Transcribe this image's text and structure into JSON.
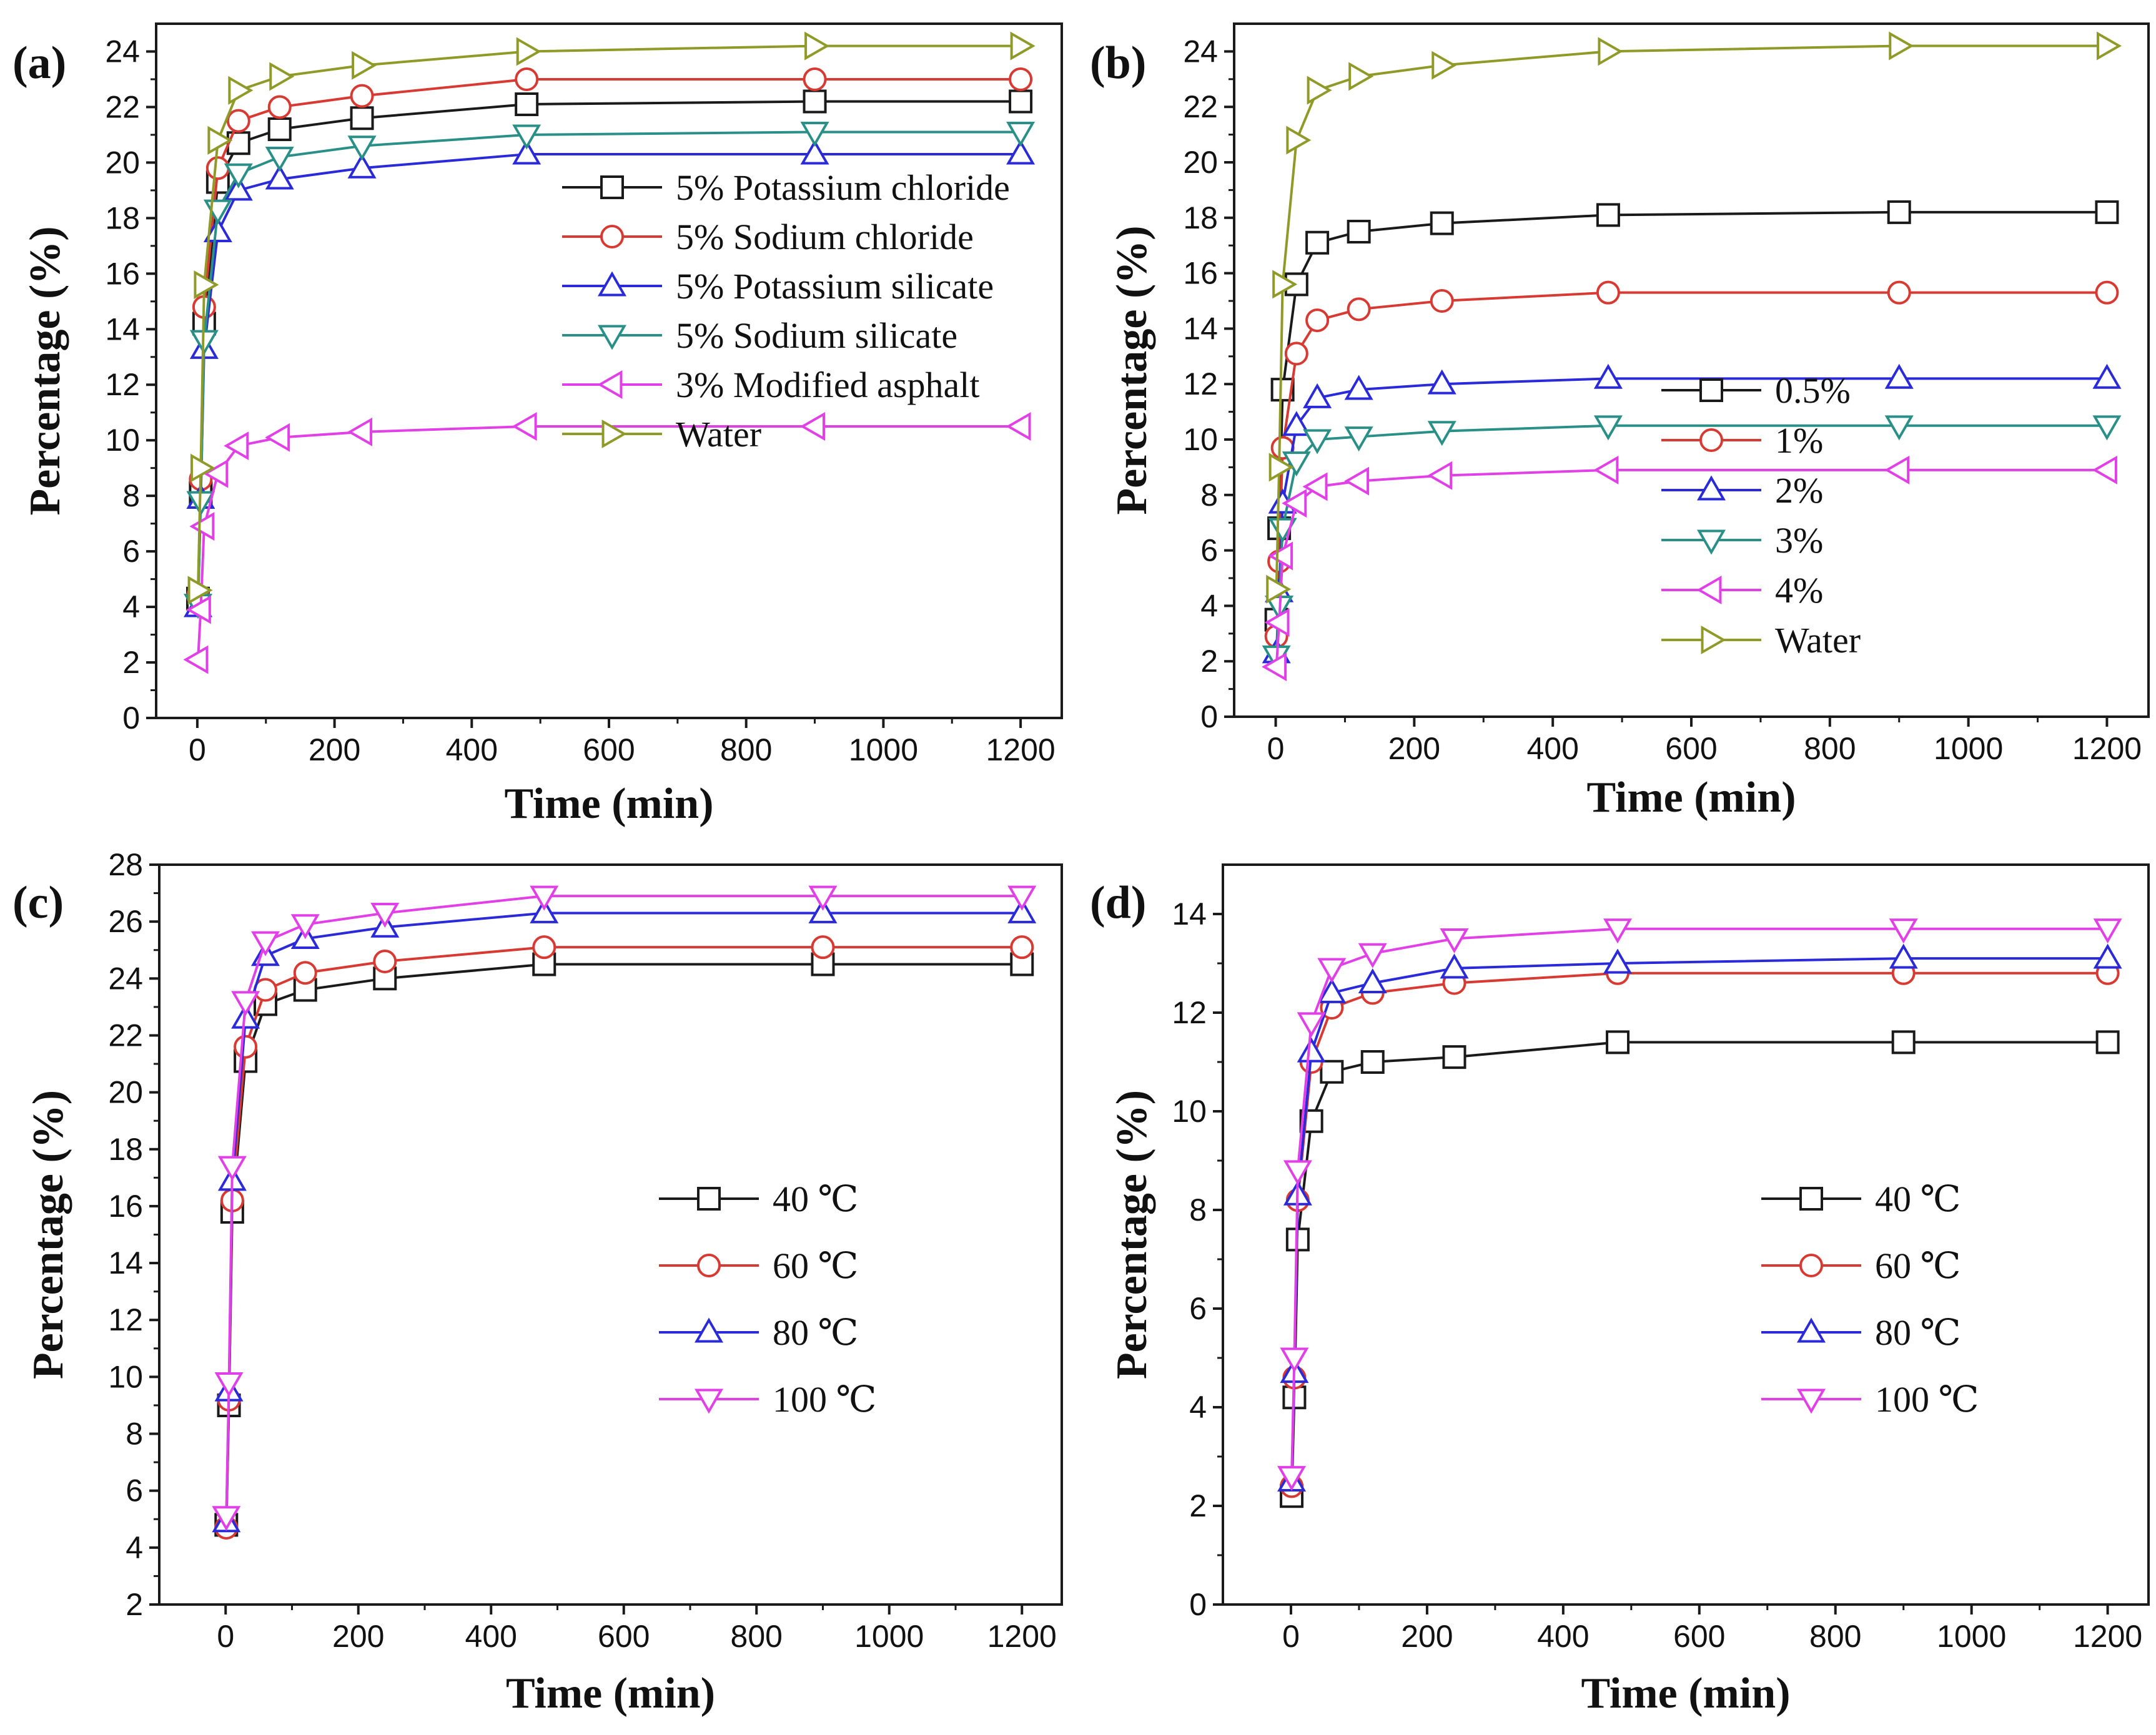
{
  "colors": {
    "black": "#1a1a1a",
    "red": "#d63a32",
    "blue": "#2a2ad8",
    "teal": "#2a8f86",
    "magenta": "#e040e6",
    "olive": "#8f9a28"
  },
  "chart_data": [
    {
      "type": "line",
      "panel_label": "(a)",
      "xlabel": "Time (min)",
      "ylabel": "Percentage (%)",
      "xlim": [
        -60,
        1260
      ],
      "ylim": [
        0,
        25
      ],
      "xticks": [
        0,
        200,
        400,
        600,
        800,
        1000,
        1200
      ],
      "xtick_labels": [
        "0",
        "200",
        "400",
        "600",
        "800",
        "1000",
        "1200"
      ],
      "yticks": [
        0,
        2,
        4,
        6,
        8,
        10,
        12,
        14,
        16,
        18,
        20,
        22,
        24
      ],
      "ytick_labels": [
        "0",
        "2",
        "4",
        "6",
        "8",
        "10",
        "12",
        "14",
        "16",
        "18",
        "20",
        "22",
        "24"
      ],
      "legend_position": "middle-right",
      "x": [
        1,
        5,
        10,
        30,
        60,
        120,
        240,
        480,
        900,
        1200
      ],
      "series": [
        {
          "name": "5% Potassium chloride",
          "color": "black",
          "marker": "square",
          "values": [
            4.3,
            8.1,
            14.2,
            19.3,
            20.7,
            21.2,
            21.6,
            22.1,
            22.2,
            22.2
          ]
        },
        {
          "name": "5% Sodium chloride",
          "color": "red",
          "marker": "circle",
          "values": [
            4.4,
            8.6,
            14.8,
            19.8,
            21.5,
            22.0,
            22.4,
            23.0,
            23.0,
            23.0
          ]
        },
        {
          "name": "5% Potassium silicate",
          "color": "blue",
          "marker": "triangle-up",
          "values": [
            4.0,
            7.9,
            13.3,
            17.5,
            19.0,
            19.4,
            19.8,
            20.3,
            20.3,
            20.3
          ]
        },
        {
          "name": "5% Sodium silicate",
          "color": "teal",
          "marker": "triangle-down",
          "values": [
            4.1,
            7.8,
            13.6,
            18.3,
            19.6,
            20.2,
            20.6,
            21.0,
            21.1,
            21.1
          ]
        },
        {
          "name": "3% Modified asphalt",
          "color": "magenta",
          "marker": "triangle-left",
          "values": [
            2.1,
            3.9,
            6.9,
            8.8,
            9.8,
            10.1,
            10.3,
            10.5,
            10.5,
            10.5
          ]
        },
        {
          "name": "Water",
          "color": "olive",
          "marker": "triangle-right",
          "values": [
            4.6,
            9.0,
            15.6,
            20.8,
            22.6,
            23.1,
            23.5,
            24.0,
            24.2,
            24.2
          ]
        }
      ]
    },
    {
      "type": "line",
      "panel_label": "(b)",
      "xlabel": "Time (min)",
      "ylabel": "Percentage (%)",
      "xlim": [
        -60,
        1260
      ],
      "ylim": [
        0,
        25
      ],
      "xticks": [
        0,
        200,
        400,
        600,
        800,
        1000,
        1200
      ],
      "xtick_labels": [
        "0",
        "200",
        "400",
        "600",
        "800",
        "1000",
        "1200"
      ],
      "yticks": [
        0,
        2,
        4,
        6,
        8,
        10,
        12,
        14,
        16,
        18,
        20,
        22,
        24
      ],
      "ytick_labels": [
        "0",
        "2",
        "4",
        "6",
        "8",
        "10",
        "12",
        "14",
        "16",
        "18",
        "20",
        "22",
        "24"
      ],
      "legend_position": "lower-middle",
      "x": [
        1,
        5,
        10,
        30,
        60,
        120,
        240,
        480,
        900,
        1200
      ],
      "series": [
        {
          "name": "0.5%",
          "color": "black",
          "marker": "square",
          "values": [
            3.5,
            6.8,
            11.8,
            15.6,
            17.1,
            17.5,
            17.8,
            18.1,
            18.2,
            18.2
          ]
        },
        {
          "name": "1%",
          "color": "red",
          "marker": "circle",
          "values": [
            2.9,
            5.6,
            9.7,
            13.1,
            14.3,
            14.7,
            15.0,
            15.3,
            15.3,
            15.3
          ]
        },
        {
          "name": "2%",
          "color": "blue",
          "marker": "triangle-up",
          "values": [
            2.3,
            4.5,
            7.7,
            10.5,
            11.5,
            11.8,
            12.0,
            12.2,
            12.2,
            12.2
          ]
        },
        {
          "name": "3%",
          "color": "teal",
          "marker": "triangle-down",
          "values": [
            2.2,
            4.0,
            6.8,
            9.2,
            10.0,
            10.1,
            10.3,
            10.5,
            10.5,
            10.5
          ]
        },
        {
          "name": "4%",
          "color": "magenta",
          "marker": "triangle-left",
          "values": [
            1.8,
            3.4,
            5.8,
            7.7,
            8.3,
            8.5,
            8.7,
            8.9,
            8.9,
            8.9
          ]
        },
        {
          "name": "Water",
          "color": "olive",
          "marker": "triangle-right",
          "values": [
            4.6,
            9.0,
            15.6,
            20.8,
            22.6,
            23.1,
            23.5,
            24.0,
            24.2,
            24.2
          ]
        }
      ]
    },
    {
      "type": "line",
      "panel_label": "(c)",
      "xlabel": "Time (min)",
      "ylabel": "Percentage (%)",
      "xlim": [
        -100,
        1260
      ],
      "ylim": [
        2,
        28
      ],
      "xticks": [
        0,
        200,
        400,
        600,
        800,
        1000,
        1200
      ],
      "xtick_labels": [
        "0",
        "200",
        "400",
        "600",
        "800",
        "1000",
        "1200"
      ],
      "yticks": [
        2,
        4,
        6,
        8,
        10,
        12,
        14,
        16,
        18,
        20,
        22,
        24,
        26,
        28
      ],
      "ytick_labels": [
        "2",
        "4",
        "6",
        "8",
        "10",
        "12",
        "14",
        "16",
        "18",
        "20",
        "22",
        "24",
        "26",
        "28"
      ],
      "legend_position": "middle-center",
      "x": [
        1,
        5,
        10,
        30,
        60,
        120,
        240,
        480,
        900,
        1200
      ],
      "series": [
        {
          "name": "40 ℃",
          "color": "black",
          "marker": "square",
          "values": [
            4.8,
            9.0,
            15.8,
            21.1,
            23.1,
            23.6,
            24.0,
            24.5,
            24.5,
            24.5
          ]
        },
        {
          "name": "60 ℃",
          "color": "red",
          "marker": "circle",
          "values": [
            4.7,
            9.2,
            16.2,
            21.6,
            23.6,
            24.2,
            24.6,
            25.1,
            25.1,
            25.1
          ]
        },
        {
          "name": "80 ℃",
          "color": "blue",
          "marker": "triangle-up",
          "values": [
            4.9,
            9.5,
            16.9,
            22.6,
            24.8,
            25.4,
            25.8,
            26.3,
            26.3,
            26.3
          ]
        },
        {
          "name": "100 ℃",
          "color": "magenta",
          "marker": "triangle-down",
          "values": [
            5.1,
            9.8,
            17.4,
            23.2,
            25.3,
            25.9,
            26.3,
            26.9,
            26.9,
            26.9
          ]
        }
      ]
    },
    {
      "type": "line",
      "panel_label": "(d)",
      "xlabel": "Time (min)",
      "ylabel": "Percentage (%)",
      "xlim": [
        -100,
        1260
      ],
      "ylim": [
        0,
        15
      ],
      "xticks": [
        0,
        200,
        400,
        600,
        800,
        1000,
        1200
      ],
      "xtick_labels": [
        "0",
        "200",
        "400",
        "600",
        "800",
        "1000",
        "1200"
      ],
      "yticks": [
        0,
        2,
        4,
        6,
        8,
        10,
        12,
        14
      ],
      "ytick_labels": [
        "0",
        "2",
        "4",
        "6",
        "8",
        "10",
        "12",
        "14"
      ],
      "legend_position": "middle-right",
      "x": [
        1,
        5,
        10,
        30,
        60,
        120,
        240,
        480,
        900,
        1200
      ],
      "series": [
        {
          "name": "40 ℃",
          "color": "black",
          "marker": "square",
          "values": [
            2.2,
            4.2,
            7.4,
            9.8,
            10.8,
            11.0,
            11.1,
            11.4,
            11.4,
            11.4
          ]
        },
        {
          "name": "60 ℃",
          "color": "red",
          "marker": "circle",
          "values": [
            2.4,
            4.6,
            8.2,
            11.0,
            12.1,
            12.4,
            12.6,
            12.8,
            12.8,
            12.8
          ]
        },
        {
          "name": "80 ℃",
          "color": "blue",
          "marker": "triangle-up",
          "values": [
            2.5,
            4.7,
            8.3,
            11.2,
            12.4,
            12.6,
            12.9,
            13.0,
            13.1,
            13.1
          ]
        },
        {
          "name": "100 ℃",
          "color": "magenta",
          "marker": "triangle-down",
          "values": [
            2.6,
            5.0,
            8.8,
            11.8,
            12.9,
            13.2,
            13.5,
            13.7,
            13.7,
            13.7
          ]
        }
      ]
    }
  ]
}
